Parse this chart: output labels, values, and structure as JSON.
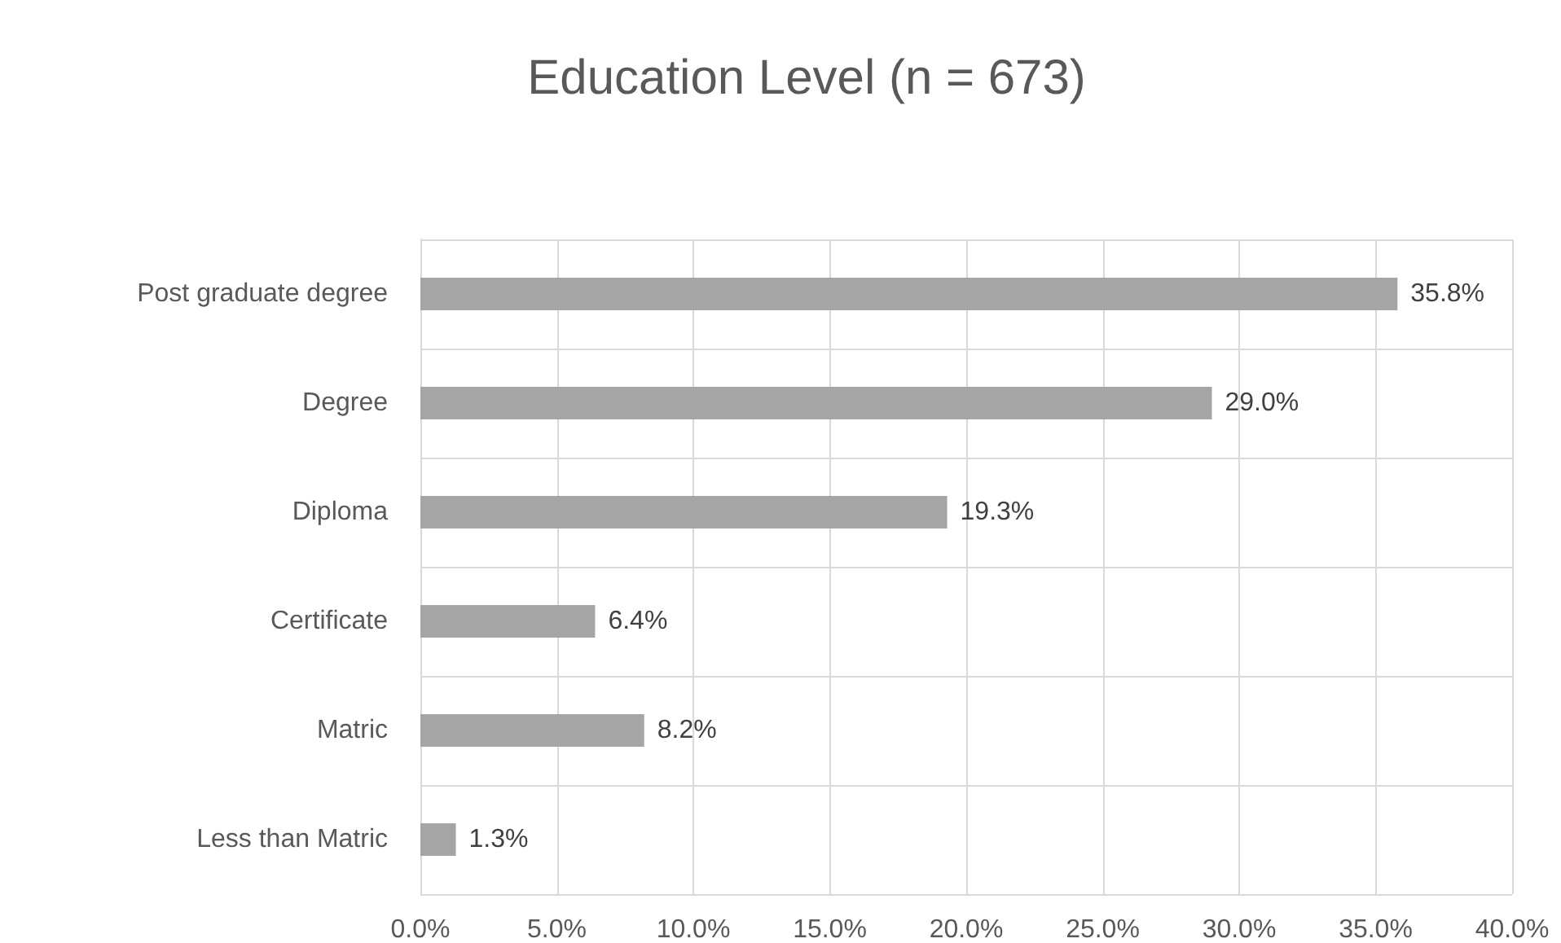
{
  "chart_data": {
    "type": "bar",
    "orientation": "horizontal",
    "title": "Education Level (n = 673)",
    "categories": [
      "Post graduate degree",
      "Degree",
      "Diploma",
      "Certificate",
      "Matric",
      "Less than Matric"
    ],
    "values": [
      35.8,
      29.0,
      19.3,
      6.4,
      8.2,
      1.3
    ],
    "value_labels": [
      "35.8%",
      "29.0%",
      "19.3%",
      "6.4%",
      "8.2%",
      "1.3%"
    ],
    "color": "#a5a5a5",
    "xlim": [
      0,
      40
    ],
    "xticks": [
      {
        "value": 0,
        "label": "0.0%"
      },
      {
        "value": 5,
        "label": "5.0%"
      },
      {
        "value": 10,
        "label": "10.0%"
      },
      {
        "value": 15,
        "label": "15.0%"
      },
      {
        "value": 20,
        "label": "20.0%"
      },
      {
        "value": 25,
        "label": "25.0%"
      },
      {
        "value": 30,
        "label": "30.0%"
      },
      {
        "value": 35,
        "label": "35.0%"
      },
      {
        "value": 40,
        "label": "40.0%"
      }
    ],
    "grid": true
  }
}
